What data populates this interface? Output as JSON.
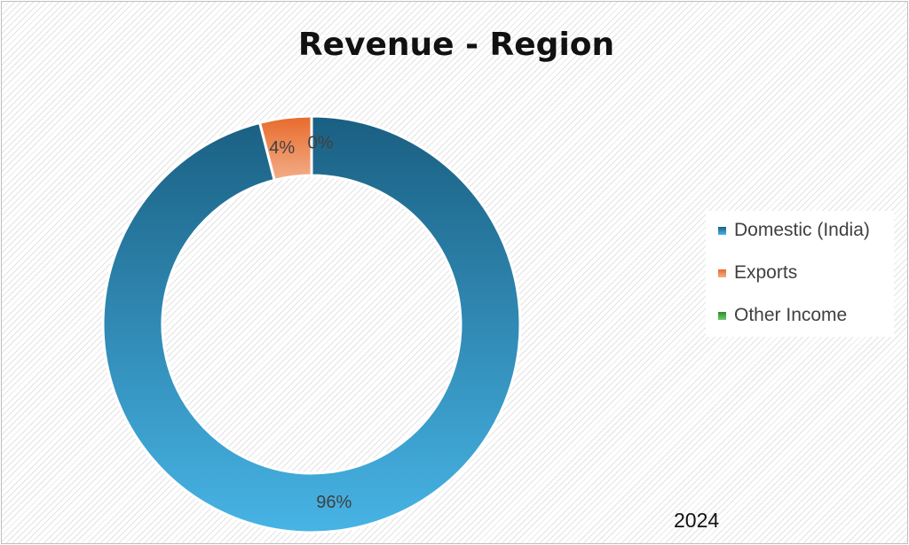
{
  "chart_data": {
    "type": "pie",
    "variant": "doughnut",
    "title": "Revenue - Region",
    "categories": [
      "Domestic (India)",
      "Exports",
      "Other Income"
    ],
    "values": [
      96,
      4,
      0
    ],
    "data_labels": [
      "96%",
      "4%",
      "0%"
    ],
    "colors": [
      "#2a87b6",
      "#ef7f3a",
      "#3aa63a"
    ],
    "legend_position": "right",
    "annotation": "2024"
  }
}
